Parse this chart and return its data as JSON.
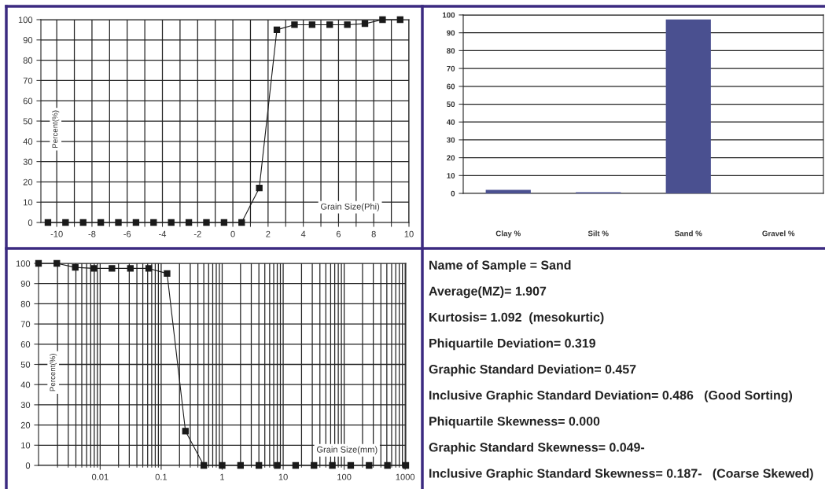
{
  "chart_data": [
    {
      "type": "line",
      "xlabel": "Grain Size(Phi)",
      "ylabel": "Percent(%)",
      "xlim": [
        -10.9,
        10
      ],
      "ylim": [
        0,
        100
      ],
      "xticks": [
        -10,
        {
          "value": -9,
          "label": null
        },
        -8,
        {
          "value": -7,
          "label": null
        },
        -6,
        {
          "value": -5,
          "label": null
        },
        -4,
        {
          "value": -3,
          "label": null
        },
        -2,
        {
          "value": -1,
          "label": null
        },
        0,
        {
          "value": 1,
          "label": null
        },
        2,
        {
          "value": 3,
          "label": null
        },
        4,
        {
          "value": 5,
          "label": null
        },
        6,
        {
          "value": 7,
          "label": null
        },
        8,
        {
          "value": 9,
          "label": null
        },
        10
      ],
      "yticks": [
        0,
        10,
        20,
        30,
        40,
        50,
        60,
        70,
        80,
        90,
        100
      ],
      "grid": true,
      "marker": "square",
      "line_style": "solid",
      "x": [
        -10.5,
        -9.5,
        -8.5,
        -7.5,
        -6.5,
        -5.5,
        -4.5,
        -3.5,
        -2.5,
        -1.5,
        -0.5,
        0.5,
        1.5,
        2.5,
        3.5,
        4.5,
        5.5,
        6.5,
        7.5,
        8.5,
        9.5
      ],
      "series": [
        {
          "color": "#1a1a1a",
          "values": [
            0,
            0,
            0,
            0,
            0,
            0,
            0,
            0,
            0,
            0,
            0,
            0,
            17,
            95,
            97.5,
            97.5,
            97.5,
            97.5,
            98,
            100,
            100
          ]
        }
      ]
    },
    {
      "type": "bar",
      "categories": [
        "Clay %",
        "Silt %",
        "Sand %",
        "Gravel %"
      ],
      "ylim": [
        0,
        100
      ],
      "yticks": [
        0,
        10,
        20,
        30,
        40,
        50,
        60,
        70,
        80,
        90,
        100
      ],
      "grid": "y",
      "series": [
        {
          "color": "#4a5090",
          "values": [
            2,
            0.7,
            97.5,
            null
          ]
        }
      ]
    },
    {
      "type": "line",
      "xlabel": "Grain Size(mm)",
      "ylabel": "Percent(%)",
      "log": "x",
      "xlim": [
        0.000977,
        1024
      ],
      "ylim": [
        0,
        100
      ],
      "xticks": [
        0.01,
        0.1,
        1,
        10,
        100,
        1000
      ],
      "yticks": [
        0,
        10,
        20,
        30,
        40,
        50,
        60,
        70,
        80,
        90,
        100
      ],
      "grid": true,
      "marker": "square",
      "line_style": "solid",
      "x": [
        0.000977,
        0.00195,
        0.00391,
        0.00781,
        0.0156,
        0.0313,
        0.0625,
        0.125,
        0.25,
        0.5,
        1,
        2,
        4,
        8,
        16,
        32,
        64,
        128,
        256,
        512,
        1024
      ],
      "series": [
        {
          "color": "#1a1a1a",
          "values": [
            100,
            100,
            98,
            97.5,
            97.5,
            97.5,
            97.5,
            95,
            17,
            0,
            0,
            0,
            0,
            0,
            0,
            0,
            0,
            0,
            0,
            0,
            0
          ]
        }
      ]
    },
    {
      "type": "other",
      "annotations": [
        "Name of Sample = Sand",
        "Average(MZ)= 1.907",
        "Kurtosis= 1.092  (mesokurtic)",
        "Phiquartile Deviation= 0.319",
        "Graphic Standard Deviation= 0.457",
        "Inclusive Graphic Standard Deviation= 0.486   (Good Sorting)",
        "Phiquartile Skewness= 0.000",
        "Graphic Standard Skewness= 0.049-",
        "Inclusive Graphic Standard Skewness= 0.187-   (Coarse Skewed)"
      ]
    }
  ]
}
